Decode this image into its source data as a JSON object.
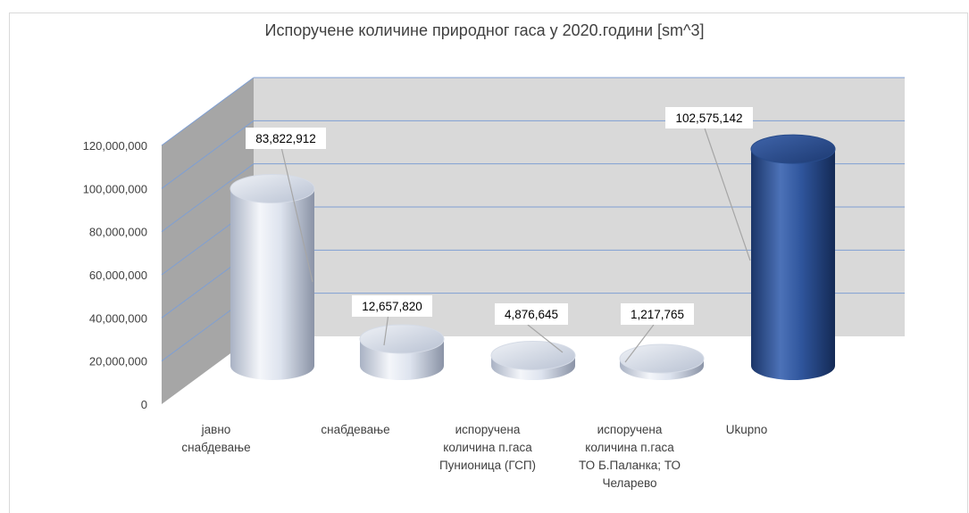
{
  "chart_data": {
    "type": "bar",
    "title": "Испоручене количине природног гаса у 2020.години [sm^3]",
    "categories": [
      [
        "јавно",
        "снабдевање"
      ],
      [
        "снабдевање"
      ],
      [
        "испоручена",
        "количина п.гаса",
        "Пунионица (ГСП)"
      ],
      [
        "испоручена",
        "количина п.гаса",
        "ТО Б.Паланка; ТО",
        "Челарево"
      ],
      [
        "Ukupno"
      ]
    ],
    "values": [
      83822912,
      12657820,
      4876645,
      1217765,
      102575142
    ],
    "data_labels": [
      "83,822,912",
      "12,657,820",
      "4,876,645",
      "1,217,765",
      "102,575,142"
    ],
    "ylim": [
      0,
      120000000
    ],
    "yticks": [
      "0",
      "20,000,000",
      "40,000,000",
      "60,000,000",
      "80,000,000",
      "100,000,000",
      "120,000,000"
    ],
    "grid": true,
    "style": "3d-cylinder",
    "colors": [
      "#c9d2e2",
      "#c9d2e2",
      "#c9d2e2",
      "#c9d2e2",
      "#2b4f91"
    ],
    "wall_color": "#d9d9d9"
  }
}
